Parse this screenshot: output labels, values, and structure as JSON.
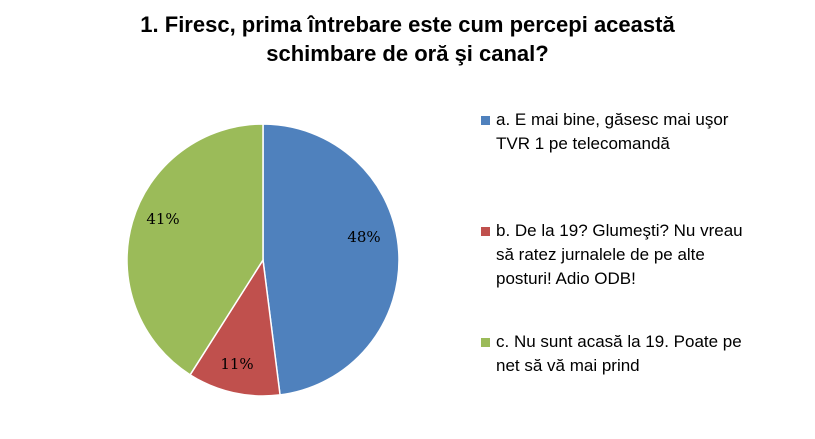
{
  "chart_data": {
    "type": "pie",
    "title_lines": [
      "1. Firesc, prima întrebare este cum percepi această",
      "schimbare de oră şi canal?"
    ],
    "slices": [
      {
        "name": "a. E mai bine, găsesc mai uşor TVR 1 pe telecomandă",
        "name_lines": [
          "a. E mai bine, găsesc mai uşor",
          "TVR 1 pe telecomandă"
        ],
        "value": 48,
        "label": "48%",
        "color": "#4F81BD"
      },
      {
        "name": "b. De la 19? Glumeşti? Nu vreau să ratez jurnalele de pe alte posturi! Adio ODB!",
        "name_lines": [
          "b. De la 19? Glumeşti? Nu vreau",
          "să ratez jurnalele de pe alte",
          "posturi! Adio ODB!"
        ],
        "value": 11,
        "label": "11%",
        "color": "#C0504D"
      },
      {
        "name": "c. Nu sunt acasă la 19. Poate pe net să vă mai prind",
        "name_lines": [
          "c. Nu sunt acasă la 19. Poate pe",
          "net să vă mai prind"
        ],
        "value": 41,
        "label": "41%",
        "color": "#9BBB59"
      }
    ],
    "legend_position": "right"
  }
}
